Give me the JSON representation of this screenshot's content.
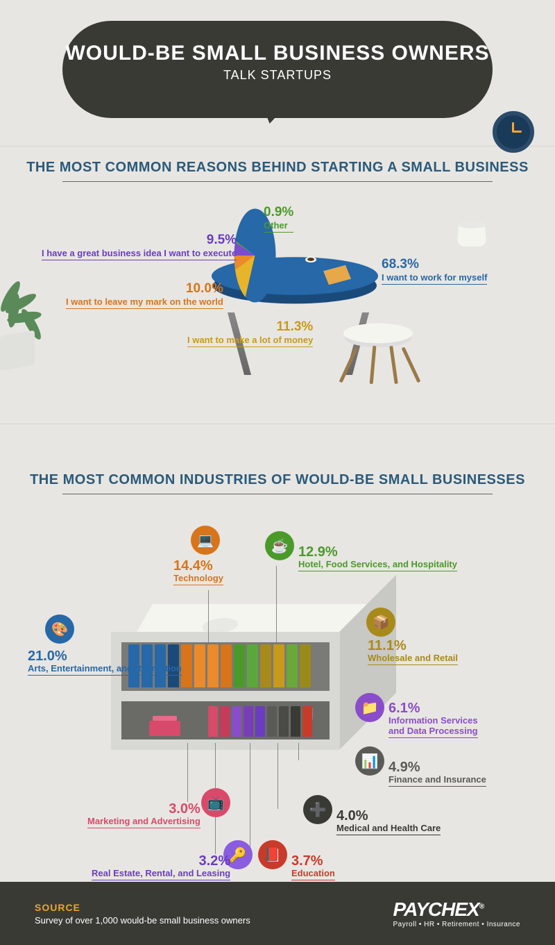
{
  "header": {
    "title": "WOULD-BE SMALL BUSINESS OWNERS",
    "subtitle": "TALK STARTUPS"
  },
  "section1": {
    "title": "THE MOST COMMON REASONS BEHIND STARTING A SMALL BUSINESS",
    "reasons": [
      {
        "pct": "68.3%",
        "label": "I want to work for myself",
        "color": "#2668a8"
      },
      {
        "pct": "11.3%",
        "label": "I want to make a lot of money",
        "color": "#c89a1a"
      },
      {
        "pct": "10.0%",
        "label": "I want to leave my mark on the world",
        "color": "#d8741a"
      },
      {
        "pct": "9.5%",
        "label": "I have a great business idea I want to execute",
        "color": "#6a3dc0"
      },
      {
        "pct": "0.9%",
        "label": "Other",
        "color": "#4a9a2a"
      }
    ],
    "pie_colors": {
      "blue": "#2668a8",
      "yellow": "#e8b42a",
      "orange": "#ea8a2a",
      "purple": "#7a4dc9",
      "green": "#5aa83a"
    }
  },
  "section2": {
    "title": "THE MOST COMMON INDUSTRIES OF WOULD-BE SMALL BUSINESSES",
    "industries": {
      "arts": {
        "pct": "21.0%",
        "label": "Arts, Entertainment, and Recreation",
        "color": "#2668a8",
        "icon": "🎨"
      },
      "tech": {
        "pct": "14.4%",
        "label": "Technology",
        "color": "#d8741a",
        "icon": "💻"
      },
      "hotel": {
        "pct": "12.9%",
        "label": "Hotel, Food Services, and Hospitality",
        "color": "#4a9a2a",
        "icon": "☕"
      },
      "wholesale": {
        "pct": "11.1%",
        "label": "Wholesale and Retail",
        "color": "#a88a1a",
        "icon": "📦"
      },
      "info": {
        "pct": "6.1%",
        "label": "Information Services\nand Data Processing",
        "color": "#8a4dc9",
        "icon": "📁"
      },
      "finance": {
        "pct": "4.9%",
        "label": "Finance and Insurance",
        "color": "#5a5a56",
        "icon": "📊"
      },
      "medical": {
        "pct": "4.0%",
        "label": "Medical and Health Care",
        "color": "#3a3a35",
        "icon": "🏥"
      },
      "education": {
        "pct": "3.7%",
        "label": "Education",
        "color": "#c83a2a",
        "icon": "📕"
      },
      "realestate": {
        "pct": "3.2%",
        "label": "Real Estate, Rental, and Leasing",
        "color": "#6a3dc0",
        "icon": "🔑"
      },
      "marketing": {
        "pct": "3.0%",
        "label": "Marketing and Advertising",
        "color": "#d84a6a",
        "icon": "📺"
      }
    },
    "book_colors_top": [
      "#2668a8",
      "#2668a8",
      "#2668a8",
      "#1a4a7a",
      "#d8741a",
      "#ea8a2a",
      "#ea8a2a",
      "#d8741a",
      "#4a9a2a",
      "#5aa83a",
      "#a88a1a",
      "#c89a1a",
      "#6aa83a",
      "#9a8a1a"
    ],
    "book_colors_bottom": [
      "#d84a6a",
      "#c83a5a",
      "#8a4dc9",
      "#7a3db9",
      "#6a3dc0",
      "#5a5a56",
      "#4a4a46",
      "#3a3a35",
      "#c83a2a"
    ]
  },
  "footer": {
    "source_label": "SOURCE",
    "source_text": "Survey of over 1,000 would-be small business owners",
    "brand": "PAYCHEX",
    "brand_sub": "Payroll • HR • Retirement • Insurance"
  }
}
